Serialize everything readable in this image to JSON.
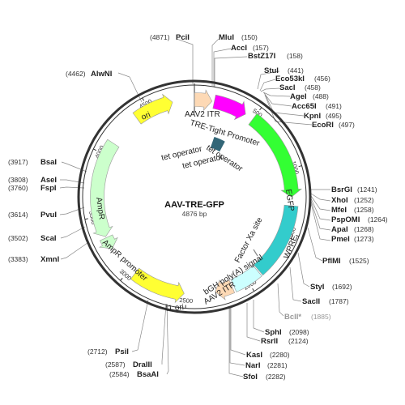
{
  "title": "AAV-TRE-GFP",
  "length_label": "4876 bp",
  "length_bp": 4876,
  "colors": {
    "backbone": "#333333",
    "ori": "#ffff33",
    "itr": "#fdd9b5",
    "tre": "#ff00ff",
    "egfp": "#33ff33",
    "wpre": "#33cccc",
    "bgh": "#ccffff",
    "f1ori": "#ffff33",
    "ampr": "#ccffcc",
    "tetop": "#336677"
  },
  "ticks": [
    {
      "bp": 500,
      "label": "500"
    },
    {
      "bp": 1000,
      "label": "1000"
    },
    {
      "bp": 1500,
      "label": "1500"
    },
    {
      "bp": 2000,
      "label": "2000"
    },
    {
      "bp": 2500,
      "label": "2500"
    },
    {
      "bp": 3000,
      "label": "3000"
    },
    {
      "bp": 3500,
      "label": "3500"
    },
    {
      "bp": 4000,
      "label": "4000"
    },
    {
      "bp": 4500,
      "label": "4500"
    }
  ],
  "features": [
    {
      "name": "ori",
      "label": "ori",
      "start": 4385,
      "end": 4700,
      "dir": 1,
      "color": "ori"
    },
    {
      "name": "aav2-itr-left",
      "label": "AAV2 ITR",
      "start": 1,
      "end": 141,
      "dir": 1,
      "color": "itr"
    },
    {
      "name": "tre-tight-promoter",
      "label": "TRE-Tight Promoter",
      "start": 160,
      "end": 430,
      "dir": 1,
      "color": "tre"
    },
    {
      "name": "egfp",
      "label": "EGFP",
      "start": 500,
      "end": 1220,
      "dir": 1,
      "color": "egfp"
    },
    {
      "name": "wpre",
      "label": "WPRE",
      "start": 1290,
      "end": 1880,
      "dir": 0,
      "color": "wpre"
    },
    {
      "name": "bgh-polya",
      "label": "bGH poly(A) signal",
      "start": 1890,
      "end": 2115,
      "dir": 0,
      "color": "bgh"
    },
    {
      "name": "aav2-itr-right",
      "label": "AAV2 ITR",
      "start": 2130,
      "end": 2270,
      "dir": 1,
      "color": "itr"
    },
    {
      "name": "f1-ori",
      "label": "f1 ori",
      "start": 2520,
      "end": 2950,
      "dir": -1,
      "color": "f1ori"
    },
    {
      "name": "ampr-promoter",
      "label": "AmpR promoter",
      "start": 3220,
      "end": 3320,
      "dir": -1,
      "color": "ampr"
    },
    {
      "name": "ampr",
      "label": "AmpR",
      "start": 3330,
      "end": 4110,
      "dir": -1,
      "color": "ampr"
    }
  ],
  "inner_labels": {
    "tet_operators": [
      "tet operator",
      "tet operator",
      "tet operator"
    ],
    "factor_xa": "Factor Xa site"
  },
  "sites": [
    {
      "name": "PciI",
      "pos": "(4871)",
      "grey": false
    },
    {
      "name": "MluI",
      "pos": "(150)",
      "grey": false
    },
    {
      "name": "AccI",
      "pos": "(157)",
      "grey": false
    },
    {
      "name": "BstZ17I",
      "pos": "(158)",
      "grey": false
    },
    {
      "name": "StuI",
      "pos": "(441)",
      "grey": false
    },
    {
      "name": "Eco53kI",
      "pos": "(456)",
      "grey": false
    },
    {
      "name": "SacI",
      "pos": "(458)",
      "grey": false
    },
    {
      "name": "AgeI",
      "pos": "(488)",
      "grey": false
    },
    {
      "name": "Acc65I",
      "pos": "(491)",
      "grey": false
    },
    {
      "name": "KpnI",
      "pos": "(495)",
      "grey": false
    },
    {
      "name": "EcoRI",
      "pos": "(497)",
      "grey": false
    },
    {
      "name": "AlwNI",
      "pos": "(4462)",
      "grey": false
    },
    {
      "name": "BsaI",
      "pos": "(3917)",
      "grey": false
    },
    {
      "name": "AseI",
      "pos": "(3808)",
      "grey": false
    },
    {
      "name": "FspI",
      "pos": "(3760)",
      "grey": false
    },
    {
      "name": "PvuI",
      "pos": "(3614)",
      "grey": false
    },
    {
      "name": "ScaI",
      "pos": "(3502)",
      "grey": false
    },
    {
      "name": "XmnI",
      "pos": "(3383)",
      "grey": false
    },
    {
      "name": "BsrGI",
      "pos": "(1241)",
      "grey": false
    },
    {
      "name": "XhoI",
      "pos": "(1252)",
      "grey": false
    },
    {
      "name": "MfeI",
      "pos": "(1258)",
      "grey": false
    },
    {
      "name": "PspOMI",
      "pos": "(1264)",
      "grey": false
    },
    {
      "name": "ApaI",
      "pos": "(1268)",
      "grey": false
    },
    {
      "name": "PmeI",
      "pos": "(1273)",
      "grey": false
    },
    {
      "name": "PflMI",
      "pos": "(1525)",
      "grey": false
    },
    {
      "name": "StyI",
      "pos": "(1692)",
      "grey": false
    },
    {
      "name": "SacII",
      "pos": "(1787)",
      "grey": false
    },
    {
      "name": "BclI*",
      "pos": "(1885)",
      "grey": true
    },
    {
      "name": "SphI",
      "pos": "(2098)",
      "grey": false
    },
    {
      "name": "RsrII",
      "pos": "(2124)",
      "grey": false
    },
    {
      "name": "KasI",
      "pos": "(2280)",
      "grey": false
    },
    {
      "name": "NarI",
      "pos": "(2281)",
      "grey": false
    },
    {
      "name": "SfoI",
      "pos": "(2282)",
      "grey": false
    },
    {
      "name": "PsiI",
      "pos": "(2712)",
      "grey": false
    },
    {
      "name": "DraIII",
      "pos": "(2587)",
      "grey": false
    },
    {
      "name": "BsaAI",
      "pos": "(2584)",
      "grey": false
    }
  ]
}
